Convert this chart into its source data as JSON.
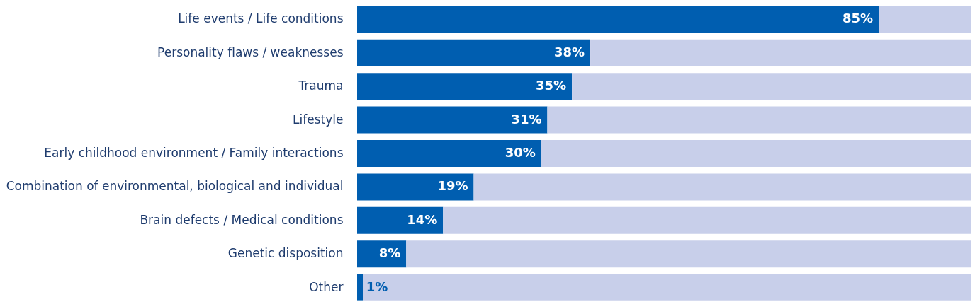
{
  "chart_data": {
    "type": "bar",
    "orientation": "horizontal",
    "stacked": true,
    "xlim": [
      0,
      100
    ],
    "tick_labels": "y",
    "categories": [
      "Life events / Life conditions",
      "Personality flaws / weaknesses",
      "Trauma",
      "Lifestyle",
      "Early childhood environment / Family interactions",
      "Combination of environmental, biological and individual",
      "Brain defects / Medical conditions",
      "Genetic disposition",
      "Other"
    ],
    "series": [
      {
        "color": "#005eb0",
        "values": [
          85,
          38,
          35,
          31,
          30,
          19,
          14,
          8,
          1
        ],
        "value_labels": [
          "85%",
          "38%",
          "35%",
          "31%",
          "30%",
          "19%",
          "14%",
          "8%",
          "1%"
        ]
      },
      {
        "color": "#c8cfea",
        "values": [
          15,
          62,
          65,
          69,
          70,
          81,
          86,
          92,
          99
        ]
      }
    ],
    "grid": false
  }
}
